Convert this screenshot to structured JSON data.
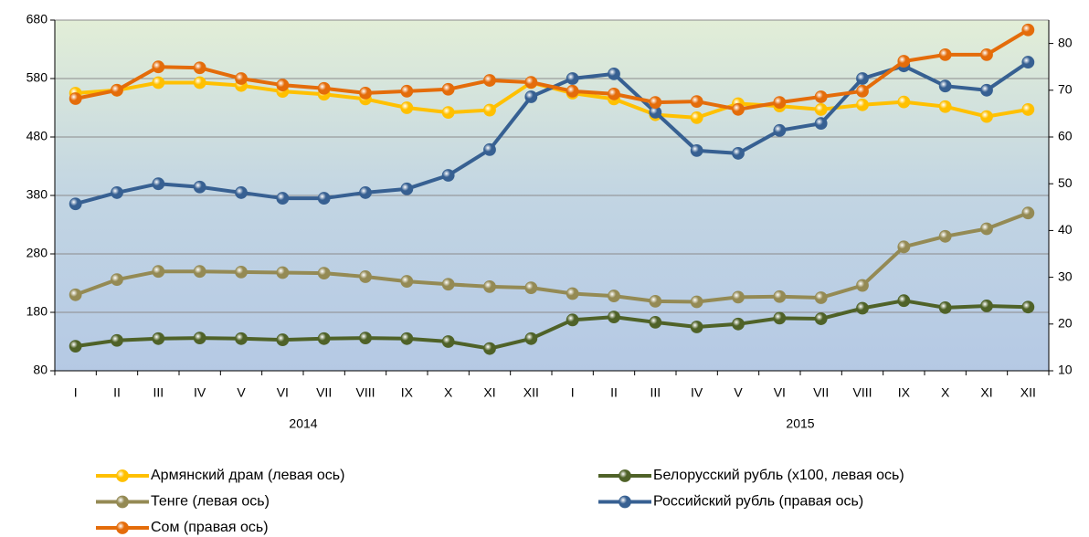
{
  "chart_data": {
    "type": "line",
    "categories": [
      "I",
      "II",
      "III",
      "IV",
      "V",
      "VI",
      "VII",
      "VIII",
      "IX",
      "X",
      "XI",
      "XII",
      "I",
      "II",
      "III",
      "IV",
      "V",
      "VI",
      "VII",
      "VIII",
      "IX",
      "X",
      "XI",
      "XII"
    ],
    "year_labels": [
      "2014",
      "2015"
    ],
    "ylim": [
      80,
      680
    ],
    "yticks": [
      80,
      180,
      280,
      380,
      480,
      580,
      680
    ],
    "y2lim": [
      10,
      85
    ],
    "y2ticks": [
      10,
      20,
      30,
      40,
      50,
      60,
      70,
      80
    ],
    "grid": true,
    "legend": "bottom",
    "series": [
      {
        "name": "Армянский драм (левая ось)",
        "color": "#ffc000",
        "values": [
          555,
          560,
          573,
          573,
          568,
          558,
          553,
          545,
          530,
          522,
          526,
          573,
          555,
          545,
          518,
          513,
          537,
          533,
          527,
          535,
          540,
          532,
          515,
          527
        ]
      },
      {
        "name": "Белорусский рубль (x100, левая ось)",
        "color": "#4f6228",
        "values": [
          122,
          132,
          135,
          136,
          135,
          133,
          135,
          136,
          135,
          130,
          118,
          135,
          167,
          172,
          163,
          155,
          160,
          170,
          169,
          187,
          200,
          188,
          191,
          189
        ]
      },
      {
        "name": "Тенге (левая ось)",
        "color": "#948a54",
        "values": [
          210,
          236,
          250,
          250,
          249,
          248,
          247,
          241,
          233,
          228,
          224,
          222,
          212,
          208,
          199,
          198,
          206,
          207,
          205,
          226,
          292,
          310,
          323,
          350
        ]
      },
      {
        "name": "Российский рубль (правая ось)",
        "color": "#376092",
        "axis": "y2",
        "values": [
          45.7,
          48.1,
          50.0,
          49.3,
          48.1,
          46.9,
          46.9,
          48.1,
          48.9,
          51.8,
          57.3,
          68.6,
          72.5,
          73.5,
          65.3,
          57.1,
          56.5,
          61.4,
          62.9,
          72.5,
          75.2,
          70.9,
          70.0,
          76.0
        ]
      },
      {
        "name": "Сом (правая ось)",
        "color": "#e46c0a",
        "axis": "y2",
        "values": [
          68.2,
          70.0,
          75.0,
          74.8,
          72.5,
          71.1,
          70.4,
          69.4,
          69.8,
          70.2,
          72.1,
          71.7,
          69.8,
          69.2,
          67.4,
          67.6,
          65.9,
          67.4,
          68.6,
          69.8,
          76.2,
          77.6,
          77.6,
          82.9
        ]
      }
    ]
  }
}
